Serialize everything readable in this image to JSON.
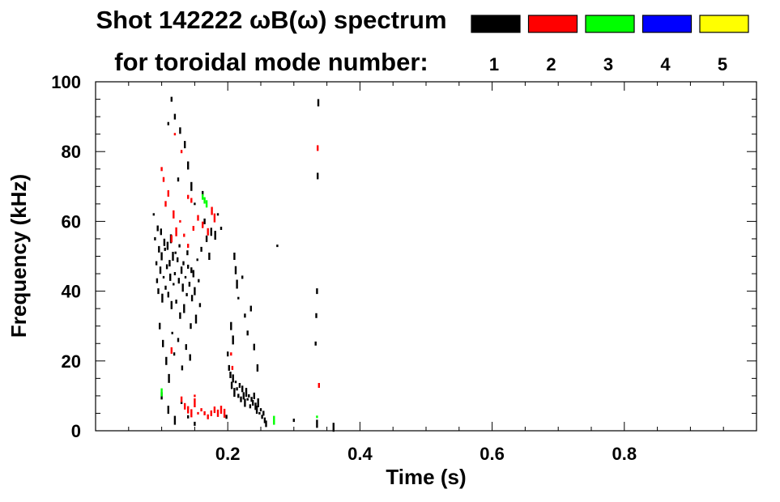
{
  "chart_data": {
    "type": "scatter",
    "title_line1": "Shot 142222 ωB(ω) spectrum",
    "title_line2": "for toroidal mode number:",
    "xlabel": "Time (s)",
    "ylabel": "Frequency (kHz)",
    "xlim": [
      0.0,
      1.0
    ],
    "ylim": [
      0,
      100
    ],
    "xticks": [
      0.2,
      0.4,
      0.6,
      0.8
    ],
    "xtick_labels": [
      "0.2",
      "0.4",
      "0.6",
      "0.8"
    ],
    "yticks": [
      0,
      20,
      40,
      60,
      80,
      100
    ],
    "ytick_labels": [
      "0",
      "20",
      "40",
      "60",
      "80",
      "100"
    ],
    "grid": false,
    "legend_placement": "top-right",
    "legend": [
      {
        "label": "1",
        "color": "#000000"
      },
      {
        "label": "2",
        "color": "#ff0000"
      },
      {
        "label": "3",
        "color": "#00ff00"
      },
      {
        "label": "4",
        "color": "#0000ff"
      },
      {
        "label": "5",
        "color": "#ffff00"
      }
    ],
    "series": [
      {
        "name": "1",
        "color": "#000000",
        "points": [
          [
            0.088,
            62
          ],
          [
            0.09,
            55
          ],
          [
            0.092,
            48
          ],
          [
            0.093,
            43
          ],
          [
            0.095,
            40
          ],
          [
            0.096,
            52
          ],
          [
            0.098,
            46
          ],
          [
            0.1,
            50
          ],
          [
            0.101,
            38
          ],
          [
            0.103,
            44
          ],
          [
            0.105,
            52
          ],
          [
            0.106,
            41
          ],
          [
            0.108,
            47
          ],
          [
            0.11,
            39
          ],
          [
            0.112,
            48
          ],
          [
            0.113,
            44
          ],
          [
            0.115,
            36
          ],
          [
            0.117,
            50
          ],
          [
            0.118,
            42
          ],
          [
            0.12,
            45
          ],
          [
            0.122,
            37
          ],
          [
            0.124,
            49
          ],
          [
            0.126,
            43
          ],
          [
            0.128,
            33
          ],
          [
            0.13,
            46
          ],
          [
            0.132,
            41
          ],
          [
            0.134,
            35
          ],
          [
            0.136,
            44
          ],
          [
            0.138,
            39
          ],
          [
            0.14,
            47
          ],
          [
            0.142,
            42
          ],
          [
            0.144,
            30
          ],
          [
            0.146,
            38
          ],
          [
            0.148,
            45
          ],
          [
            0.15,
            40
          ],
          [
            0.152,
            32
          ],
          [
            0.154,
            49
          ],
          [
            0.156,
            43
          ],
          [
            0.158,
            36
          ],
          [
            0.16,
            52
          ],
          [
            0.094,
            58
          ],
          [
            0.099,
            57
          ],
          [
            0.104,
            54
          ],
          [
            0.109,
            53
          ],
          [
            0.114,
            55
          ],
          [
            0.121,
            51
          ],
          [
            0.127,
            53
          ],
          [
            0.133,
            48
          ],
          [
            0.139,
            51
          ],
          [
            0.145,
            46
          ],
          [
            0.097,
            30
          ],
          [
            0.102,
            25
          ],
          [
            0.107,
            20
          ],
          [
            0.111,
            15
          ],
          [
            0.116,
            28
          ],
          [
            0.119,
            22
          ],
          [
            0.125,
            26
          ],
          [
            0.131,
            18
          ],
          [
            0.137,
            24
          ],
          [
            0.143,
            21
          ],
          [
            0.1,
            10
          ],
          [
            0.11,
            6
          ],
          [
            0.12,
            3
          ],
          [
            0.13,
            8
          ],
          [
            0.14,
            4
          ],
          [
            0.15,
            2
          ],
          [
            0.115,
            95
          ],
          [
            0.12,
            90
          ],
          [
            0.128,
            86
          ],
          [
            0.135,
            82
          ],
          [
            0.14,
            76
          ],
          [
            0.145,
            70
          ],
          [
            0.15,
            65
          ],
          [
            0.11,
            88
          ],
          [
            0.125,
            72
          ],
          [
            0.162,
            68
          ],
          [
            0.165,
            60
          ],
          [
            0.168,
            55
          ],
          [
            0.172,
            50
          ],
          [
            0.175,
            57
          ],
          [
            0.181,
            56
          ],
          [
            0.185,
            62
          ],
          [
            0.19,
            58
          ],
          [
            0.198,
            4
          ],
          [
            0.2,
            22
          ],
          [
            0.202,
            18
          ],
          [
            0.204,
            16
          ],
          [
            0.206,
            13
          ],
          [
            0.208,
            15
          ],
          [
            0.21,
            11
          ],
          [
            0.212,
            14
          ],
          [
            0.214,
            12
          ],
          [
            0.216,
            10
          ],
          [
            0.218,
            13
          ],
          [
            0.22,
            9
          ],
          [
            0.222,
            12
          ],
          [
            0.224,
            10
          ],
          [
            0.226,
            8
          ],
          [
            0.228,
            11
          ],
          [
            0.23,
            9
          ],
          [
            0.232,
            10
          ],
          [
            0.234,
            7
          ],
          [
            0.236,
            9
          ],
          [
            0.238,
            8
          ],
          [
            0.24,
            10
          ],
          [
            0.242,
            7
          ],
          [
            0.244,
            6
          ],
          [
            0.246,
            8
          ],
          [
            0.248,
            5
          ],
          [
            0.25,
            6
          ],
          [
            0.252,
            4
          ],
          [
            0.254,
            5
          ],
          [
            0.256,
            3
          ],
          [
            0.258,
            2
          ],
          [
            0.21,
            50
          ],
          [
            0.212,
            46
          ],
          [
            0.214,
            42
          ],
          [
            0.216,
            38
          ],
          [
            0.222,
            44
          ],
          [
            0.226,
            33
          ],
          [
            0.23,
            28
          ],
          [
            0.235,
            35
          ],
          [
            0.24,
            24
          ],
          [
            0.245,
            18
          ],
          [
            0.205,
            30
          ],
          [
            0.208,
            26
          ],
          [
            0.275,
            53
          ],
          [
            0.3,
            3
          ],
          [
            0.333,
            25
          ],
          [
            0.334,
            33
          ],
          [
            0.335,
            40
          ],
          [
            0.336,
            73
          ],
          [
            0.337,
            94
          ],
          [
            0.335,
            2
          ],
          [
            0.36,
            1
          ]
        ]
      },
      {
        "name": "2",
        "color": "#ff0000",
        "points": [
          [
            0.1,
            75
          ],
          [
            0.103,
            72
          ],
          [
            0.106,
            65
          ],
          [
            0.11,
            68
          ],
          [
            0.115,
            55
          ],
          [
            0.118,
            62
          ],
          [
            0.122,
            57
          ],
          [
            0.128,
            60
          ],
          [
            0.134,
            56
          ],
          [
            0.14,
            53
          ],
          [
            0.148,
            58
          ],
          [
            0.155,
            61
          ],
          [
            0.162,
            59
          ],
          [
            0.17,
            57
          ],
          [
            0.176,
            63
          ],
          [
            0.18,
            61
          ],
          [
            0.12,
            85
          ],
          [
            0.13,
            80
          ],
          [
            0.14,
            67
          ],
          [
            0.145,
            66
          ],
          [
            0.13,
            9
          ],
          [
            0.135,
            7
          ],
          [
            0.14,
            6
          ],
          [
            0.145,
            5
          ],
          [
            0.15,
            8
          ],
          [
            0.155,
            5
          ],
          [
            0.16,
            6
          ],
          [
            0.165,
            5
          ],
          [
            0.17,
            4
          ],
          [
            0.175,
            5
          ],
          [
            0.18,
            6
          ],
          [
            0.185,
            5
          ],
          [
            0.19,
            6
          ],
          [
            0.195,
            5
          ],
          [
            0.15,
            10
          ],
          [
            0.205,
            22
          ],
          [
            0.207,
            18
          ],
          [
            0.338,
            13
          ],
          [
            0.336,
            81
          ],
          [
            0.115,
            23
          ]
        ]
      },
      {
        "name": "3",
        "color": "#00ff00",
        "points": [
          [
            0.162,
            67
          ],
          [
            0.165,
            66
          ],
          [
            0.168,
            65
          ],
          [
            0.1,
            11
          ],
          [
            0.27,
            3
          ],
          [
            0.335,
            4
          ]
        ]
      },
      {
        "name": "4",
        "color": "#0000ff",
        "points": []
      },
      {
        "name": "5",
        "color": "#ffff00",
        "points": []
      }
    ]
  }
}
